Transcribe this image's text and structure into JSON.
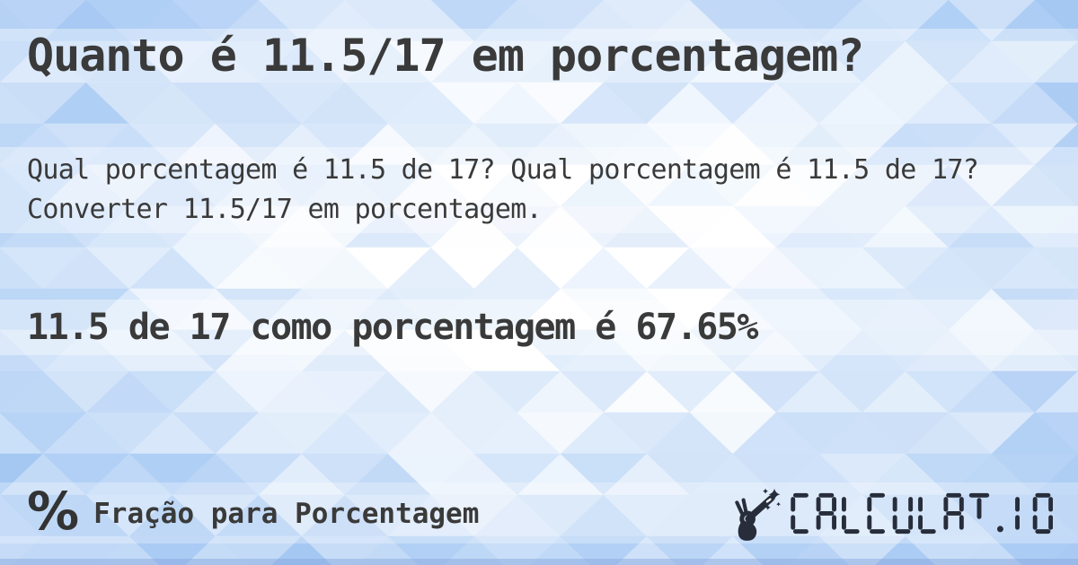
{
  "content": {
    "title": "Quanto é 11.5/17 em porcentagem?",
    "description": "Qual porcentagem é 11.5 de 17? Qual porcentagem é 11.5 de 17? Converter 11.5/17 em porcentagem.",
    "answer": "11.5 de 17 como porcentagem é 67.65%"
  },
  "footer": {
    "percent_glyph": "%",
    "category_label": "Fração para Porcentagem",
    "logo_text": "CALCULAT.IO"
  },
  "colors": {
    "text": "#3a3a3a",
    "logo": "#272d3a",
    "band_overlay": "rgba(255,255,255,0.38)",
    "background_blue": "#9dc3f2",
    "background_light": "#ffffff"
  }
}
